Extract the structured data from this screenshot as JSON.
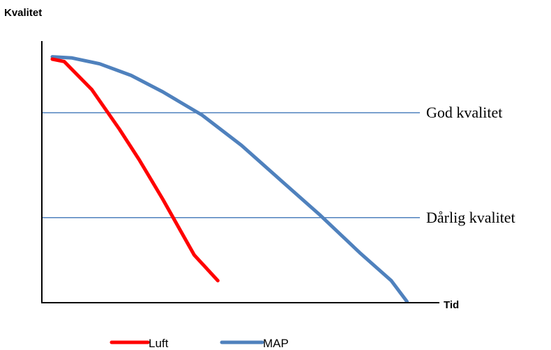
{
  "chart_data": {
    "type": "line",
    "ylabel": "Kvalitet",
    "xlabel": "Tid",
    "grid": false,
    "legend_position": "bottom",
    "xlim": [
      0,
      100
    ],
    "ylim": [
      0,
      100
    ],
    "series": [
      {
        "name": "Luft",
        "color": "#ff0000",
        "x": [
          0,
          3,
          10,
          17,
          22,
          28,
          36,
          42
        ],
        "y": [
          100,
          99,
          87,
          70,
          57,
          40,
          16,
          5
        ]
      },
      {
        "name": "MAP",
        "color": "#4f81bd",
        "x": [
          0,
          5,
          12,
          20,
          28,
          38,
          48,
          58,
          68,
          78,
          86,
          90
        ],
        "y": [
          101,
          100.5,
          98,
          93,
          86,
          76,
          63,
          48,
          33,
          17,
          5,
          -4
        ]
      }
    ],
    "reference_lines": [
      {
        "label": "God kvalitet",
        "y": 77,
        "color": "#4f81bd"
      },
      {
        "label": "Dårlig kvalitet",
        "y": 32,
        "color": "#4f81bd"
      }
    ]
  }
}
